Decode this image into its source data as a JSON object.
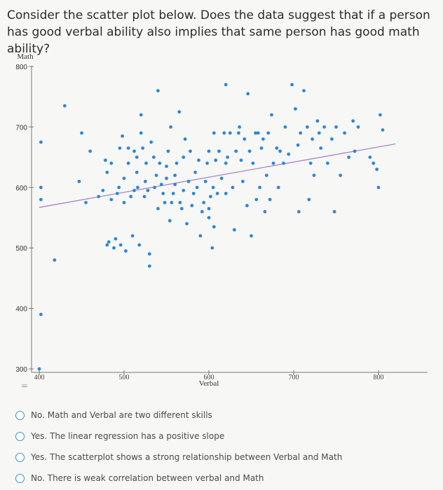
{
  "question": "Consider the scatter plot below. Does the data suggest that if a person has good verbal ability also implies that same person has good math ability?",
  "options": [
    "No. Math and Verbal are two different skills",
    "Yes. The linear regression has a positive slope",
    "Yes. The scatterplot shows a strong relationship between Verbal and Math",
    "No. There is weak correlation between verbal and Math"
  ],
  "side_mark": "=",
  "colors": {
    "points": "#2f86d8",
    "regression": "#a786c8",
    "axis": "#777777"
  },
  "chart_data": {
    "type": "scatter",
    "title": "",
    "xlabel": "Verbal",
    "ylabel": "Math",
    "xlim": [
      360,
      820
    ],
    "ylim": [
      290,
      815
    ],
    "xticks": [
      400,
      500,
      600,
      700,
      800
    ],
    "yticks": [
      300,
      400,
      500,
      600,
      700,
      800
    ],
    "regression": {
      "x": [
        400,
        820
      ],
      "y": [
        567,
        672
      ]
    },
    "points": [
      [
        400,
        300
      ],
      [
        402,
        390
      ],
      [
        402,
        580
      ],
      [
        402,
        675
      ],
      [
        402,
        600
      ],
      [
        418,
        480
      ],
      [
        430,
        735
      ],
      [
        447,
        610
      ],
      [
        450,
        690
      ],
      [
        455,
        575
      ],
      [
        460,
        660
      ],
      [
        470,
        585
      ],
      [
        475,
        595
      ],
      [
        478,
        645
      ],
      [
        480,
        625
      ],
      [
        480,
        505
      ],
      [
        482,
        510
      ],
      [
        485,
        580
      ],
      [
        485,
        640
      ],
      [
        488,
        500
      ],
      [
        490,
        515
      ],
      [
        492,
        590
      ],
      [
        494,
        600
      ],
      [
        495,
        665
      ],
      [
        496,
        505
      ],
      [
        498,
        685
      ],
      [
        500,
        615
      ],
      [
        500,
        575
      ],
      [
        502,
        495
      ],
      [
        505,
        665
      ],
      [
        505,
        640
      ],
      [
        508,
        585
      ],
      [
        510,
        520
      ],
      [
        512,
        595
      ],
      [
        512,
        660
      ],
      [
        515,
        625
      ],
      [
        515,
        650
      ],
      [
        516,
        600
      ],
      [
        518,
        505
      ],
      [
        520,
        720
      ],
      [
        520,
        690
      ],
      [
        522,
        665
      ],
      [
        524,
        585
      ],
      [
        525,
        610
      ],
      [
        526,
        640
      ],
      [
        528,
        595
      ],
      [
        530,
        490
      ],
      [
        530,
        470
      ],
      [
        532,
        675
      ],
      [
        535,
        650
      ],
      [
        536,
        600
      ],
      [
        538,
        620
      ],
      [
        540,
        565
      ],
      [
        540,
        760
      ],
      [
        542,
        640
      ],
      [
        544,
        605
      ],
      [
        546,
        590
      ],
      [
        548,
        575
      ],
      [
        550,
        615
      ],
      [
        550,
        635
      ],
      [
        552,
        660
      ],
      [
        554,
        545
      ],
      [
        555,
        700
      ],
      [
        556,
        575
      ],
      [
        558,
        590
      ],
      [
        560,
        605
      ],
      [
        560,
        620
      ],
      [
        562,
        640
      ],
      [
        565,
        725
      ],
      [
        566,
        575
      ],
      [
        568,
        565
      ],
      [
        570,
        595
      ],
      [
        570,
        650
      ],
      [
        572,
        680
      ],
      [
        574,
        540
      ],
      [
        576,
        610
      ],
      [
        578,
        660
      ],
      [
        580,
        570
      ],
      [
        582,
        590
      ],
      [
        584,
        625
      ],
      [
        586,
        600
      ],
      [
        588,
        645
      ],
      [
        590,
        520
      ],
      [
        592,
        560
      ],
      [
        594,
        575
      ],
      [
        596,
        610
      ],
      [
        598,
        640
      ],
      [
        600,
        550
      ],
      [
        600,
        565
      ],
      [
        600,
        660
      ],
      [
        602,
        585
      ],
      [
        604,
        500
      ],
      [
        605,
        600
      ],
      [
        606,
        690
      ],
      [
        606,
        535
      ],
      [
        608,
        645
      ],
      [
        610,
        590
      ],
      [
        612,
        660
      ],
      [
        615,
        615
      ],
      [
        618,
        690
      ],
      [
        620,
        590
      ],
      [
        620,
        640
      ],
      [
        620,
        770
      ],
      [
        622,
        650
      ],
      [
        625,
        690
      ],
      [
        628,
        600
      ],
      [
        630,
        530
      ],
      [
        632,
        660
      ],
      [
        635,
        690
      ],
      [
        636,
        700
      ],
      [
        638,
        645
      ],
      [
        640,
        610
      ],
      [
        642,
        680
      ],
      [
        645,
        570
      ],
      [
        646,
        755
      ],
      [
        648,
        660
      ],
      [
        650,
        520
      ],
      [
        652,
        640
      ],
      [
        655,
        690
      ],
      [
        656,
        580
      ],
      [
        658,
        690
      ],
      [
        660,
        600
      ],
      [
        662,
        665
      ],
      [
        664,
        680
      ],
      [
        666,
        560
      ],
      [
        668,
        620
      ],
      [
        670,
        690
      ],
      [
        672,
        580
      ],
      [
        674,
        720
      ],
      [
        676,
        640
      ],
      [
        680,
        665
      ],
      [
        682,
        600
      ],
      [
        684,
        660
      ],
      [
        688,
        640
      ],
      [
        690,
        700
      ],
      [
        694,
        655
      ],
      [
        698,
        770
      ],
      [
        702,
        730
      ],
      [
        705,
        670
      ],
      [
        706,
        560
      ],
      [
        708,
        690
      ],
      [
        712,
        760
      ],
      [
        716,
        700
      ],
      [
        718,
        580
      ],
      [
        720,
        640
      ],
      [
        722,
        680
      ],
      [
        724,
        620
      ],
      [
        728,
        710
      ],
      [
        730,
        690
      ],
      [
        732,
        665
      ],
      [
        736,
        700
      ],
      [
        740,
        640
      ],
      [
        745,
        680
      ],
      [
        748,
        560
      ],
      [
        750,
        700
      ],
      [
        755,
        620
      ],
      [
        760,
        690
      ],
      [
        765,
        650
      ],
      [
        770,
        710
      ],
      [
        772,
        660
      ],
      [
        776,
        700
      ],
      [
        790,
        650
      ],
      [
        794,
        640
      ],
      [
        798,
        630
      ],
      [
        800,
        600
      ],
      [
        802,
        720
      ],
      [
        805,
        695
      ]
    ]
  }
}
